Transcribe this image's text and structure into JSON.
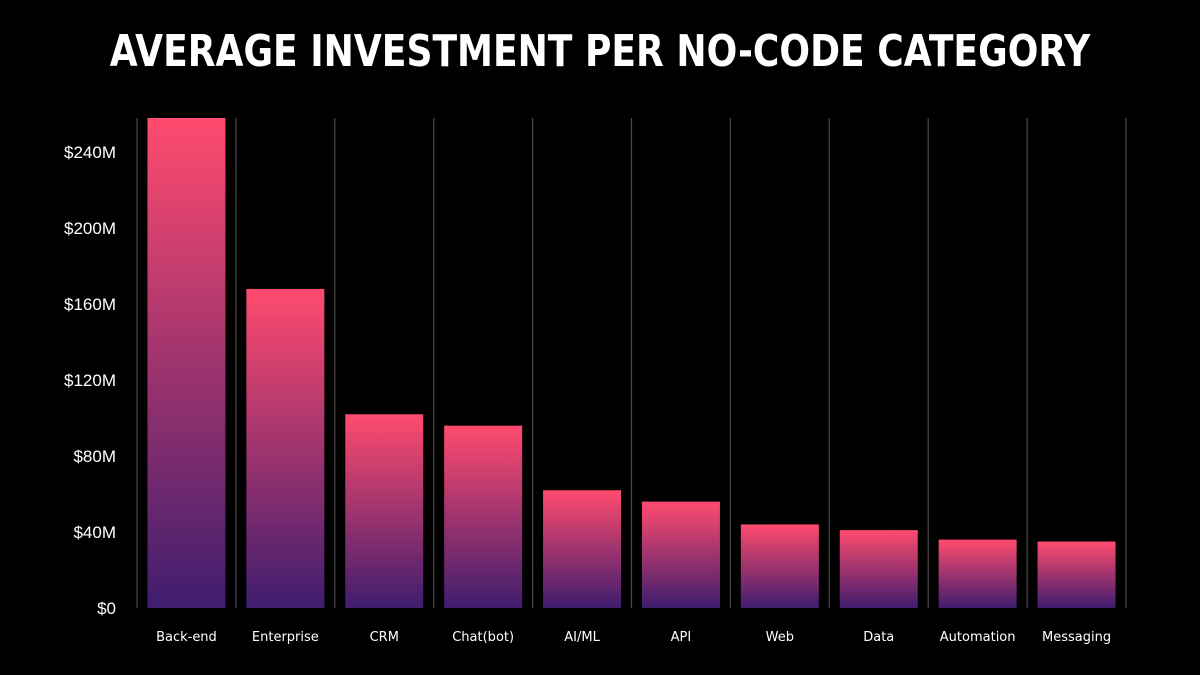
{
  "chart_data": {
    "type": "bar",
    "title": "AVERAGE INVESTMENT PER NO-CODE CATEGORY",
    "xlabel": "",
    "ylabel": "",
    "categories": [
      "Back-end",
      "Enterprise",
      "CRM",
      "Chat(bot)",
      "AI/ML",
      "API",
      "Web",
      "Data",
      "Automation",
      "Messaging"
    ],
    "values": [
      258,
      168,
      102,
      96,
      62,
      56,
      44,
      41,
      36,
      35
    ],
    "ylim": [
      0,
      258
    ],
    "yticks": [
      0,
      40,
      80,
      120,
      160,
      200,
      240
    ],
    "ytick_labels": [
      "$0",
      "$40M",
      "$80M",
      "$120M",
      "$160M",
      "$200M",
      "$240M"
    ],
    "grid": "vertical",
    "colors": {
      "background": "#000000",
      "bar_top": "#ff4b6e",
      "bar_bottom": "#3f1d6e",
      "grid": "#4a4a4a",
      "text": "#ffffff"
    }
  }
}
